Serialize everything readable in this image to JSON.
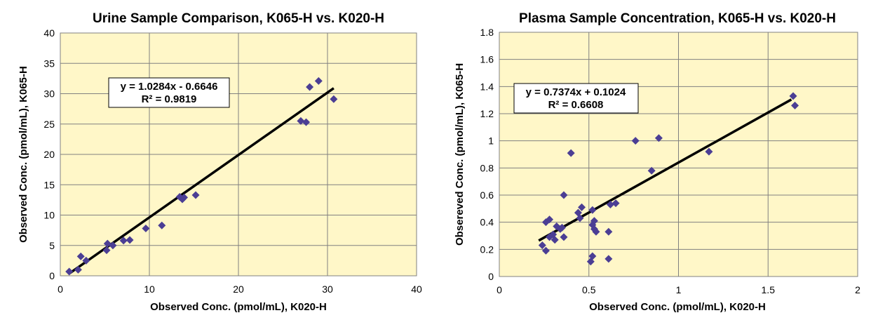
{
  "chart_data": [
    {
      "type": "scatter",
      "title": "Urine Sample Comparison, K065-H vs. K020-H",
      "xlabel": "Observed Conc. (pmol/mL), K020-H",
      "ylabel": "Observed Conc. (pmol/mL), K065-H",
      "xlim": [
        0,
        40
      ],
      "ylim": [
        0,
        40
      ],
      "xticks": [
        "0",
        "10",
        "20",
        "30",
        "40"
      ],
      "yticks": [
        "0",
        "5",
        "10",
        "15",
        "20",
        "25",
        "30",
        "35",
        "40"
      ],
      "xtick_values": [
        0,
        10,
        20,
        30,
        40
      ],
      "ytick_values": [
        0,
        5,
        10,
        15,
        20,
        25,
        30,
        35,
        40
      ],
      "grid": true,
      "background_color": "#FFF7C8",
      "marker_color": "#4B3E94",
      "points": [
        [
          1.0,
          0.7
        ],
        [
          2.0,
          1.0
        ],
        [
          2.3,
          3.2
        ],
        [
          2.9,
          2.5
        ],
        [
          5.2,
          4.2
        ],
        [
          5.3,
          5.3
        ],
        [
          5.9,
          5.0
        ],
        [
          7.1,
          5.8
        ],
        [
          7.8,
          5.9
        ],
        [
          9.6,
          7.8
        ],
        [
          11.4,
          8.3
        ],
        [
          13.4,
          13.0
        ],
        [
          13.7,
          12.6
        ],
        [
          13.9,
          12.9
        ],
        [
          15.2,
          13.3
        ],
        [
          27.0,
          25.5
        ],
        [
          27.6,
          25.3
        ],
        [
          28.0,
          31.1
        ],
        [
          29.0,
          32.1
        ],
        [
          30.7,
          29.1
        ]
      ],
      "trendline": {
        "slope": 1.0284,
        "intercept": -0.6646,
        "x_range": [
          1.0,
          30.7
        ]
      },
      "equation": "y = 1.0284x - 0.6646",
      "r_squared": "R² = 0.9819"
    },
    {
      "type": "scatter",
      "title": "Plasma Sample Concentration, K065-H vs. K020-H",
      "xlabel": "Observed Conc. (pmol/mL), K020-H",
      "ylabel": "Obsereved Conc. (pmol/mL), K065-H",
      "xlim": [
        0,
        2
      ],
      "ylim": [
        0,
        1.8
      ],
      "xticks": [
        "0",
        "0.5",
        "1",
        "1.5",
        "2"
      ],
      "yticks": [
        "0",
        "0.2",
        "0.4",
        "0.6",
        "0.8",
        "1",
        "1.2",
        "1.4",
        "1.6",
        "1.8"
      ],
      "xtick_values": [
        0,
        0.5,
        1,
        1.5,
        2
      ],
      "ytick_values": [
        0,
        0.2,
        0.4,
        0.6,
        0.8,
        1.0,
        1.2,
        1.4,
        1.6,
        1.8
      ],
      "grid": true,
      "background_color": "#FFF7C8",
      "marker_color": "#4B3E94",
      "points": [
        [
          0.24,
          0.23
        ],
        [
          0.26,
          0.19
        ],
        [
          0.26,
          0.4
        ],
        [
          0.28,
          0.42
        ],
        [
          0.28,
          0.29
        ],
        [
          0.3,
          0.31
        ],
        [
          0.31,
          0.27
        ],
        [
          0.32,
          0.37
        ],
        [
          0.34,
          0.35
        ],
        [
          0.35,
          0.36
        ],
        [
          0.36,
          0.6
        ],
        [
          0.36,
          0.29
        ],
        [
          0.4,
          0.91
        ],
        [
          0.44,
          0.47
        ],
        [
          0.45,
          0.43
        ],
        [
          0.46,
          0.51
        ],
        [
          0.51,
          0.11
        ],
        [
          0.52,
          0.15
        ],
        [
          0.52,
          0.38
        ],
        [
          0.52,
          0.49
        ],
        [
          0.53,
          0.41
        ],
        [
          0.53,
          0.35
        ],
        [
          0.54,
          0.33
        ],
        [
          0.61,
          0.13
        ],
        [
          0.61,
          0.33
        ],
        [
          0.62,
          0.53
        ],
        [
          0.65,
          0.54
        ],
        [
          0.76,
          1.0
        ],
        [
          0.85,
          0.78
        ],
        [
          0.89,
          1.02
        ],
        [
          1.17,
          0.92
        ],
        [
          1.64,
          1.33
        ],
        [
          1.65,
          1.26
        ]
      ],
      "trendline": {
        "slope": 0.7374,
        "intercept": 0.1024,
        "x_range": [
          0.22,
          1.63
        ]
      },
      "equation": "y = 0.7374x + 0.1024",
      "r_squared": "R² = 0.6608"
    }
  ]
}
